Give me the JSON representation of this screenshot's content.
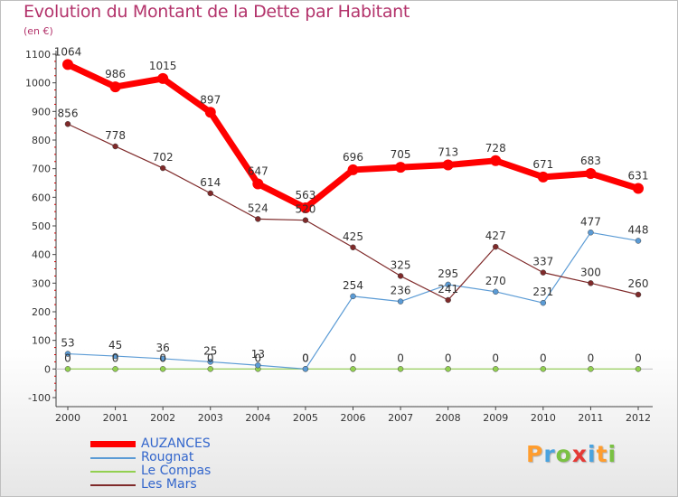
{
  "title": "Evolution du Montant de la Dette par Habitant",
  "subtitle": "(en €)",
  "logo": [
    "P",
    "r",
    "o",
    "x",
    "i",
    "t",
    "i"
  ],
  "chart_data": {
    "type": "line",
    "x": [
      "2000",
      "2001",
      "2002",
      "2003",
      "2004",
      "2005",
      "2006",
      "2007",
      "2008",
      "2009",
      "2010",
      "2011",
      "2012"
    ],
    "ylim": [
      -100,
      1100
    ],
    "yticks": [
      -100,
      0,
      100,
      200,
      300,
      400,
      500,
      600,
      700,
      800,
      900,
      1000,
      1100
    ],
    "grid": false,
    "legend_position": "bottom-left",
    "series": [
      {
        "name": "AUZANCES",
        "color": "#ff0000",
        "values": [
          1064,
          986,
          1015,
          897,
          647,
          563,
          696,
          705,
          713,
          728,
          671,
          683,
          631
        ],
        "labels": [
          "1064",
          "986",
          "1015",
          "897",
          "647",
          "563",
          "696",
          "705",
          "713",
          "728",
          "671",
          "683",
          "631"
        ]
      },
      {
        "name": "Rougnat",
        "color": "#5b9bd5",
        "values": [
          53,
          45,
          36,
          25,
          13,
          0,
          254,
          236,
          295,
          270,
          231,
          477,
          448
        ],
        "labels": [
          "53",
          "45",
          "36",
          "25",
          "13",
          "0",
          "254",
          "236",
          "295",
          "270",
          "231",
          "477",
          "448"
        ]
      },
      {
        "name": "Le Compas",
        "color": "#92d050",
        "values": [
          0,
          0,
          0,
          0,
          0,
          0,
          0,
          0,
          0,
          0,
          0,
          0,
          0
        ],
        "labels": [
          "0",
          "0",
          "0",
          "0",
          "0",
          "0",
          "0",
          "0",
          "0",
          "0",
          "0",
          "0",
          "0"
        ]
      },
      {
        "name": "Les Mars",
        "color": "#7f2a2a",
        "values": [
          856,
          778,
          702,
          614,
          524,
          520,
          425,
          325,
          241,
          427,
          337,
          300,
          260
        ],
        "labels": [
          "856",
          "778",
          "702",
          "614",
          "524",
          "520",
          "425",
          "325",
          "241",
          "427",
          "337",
          "300",
          "260"
        ]
      }
    ]
  }
}
